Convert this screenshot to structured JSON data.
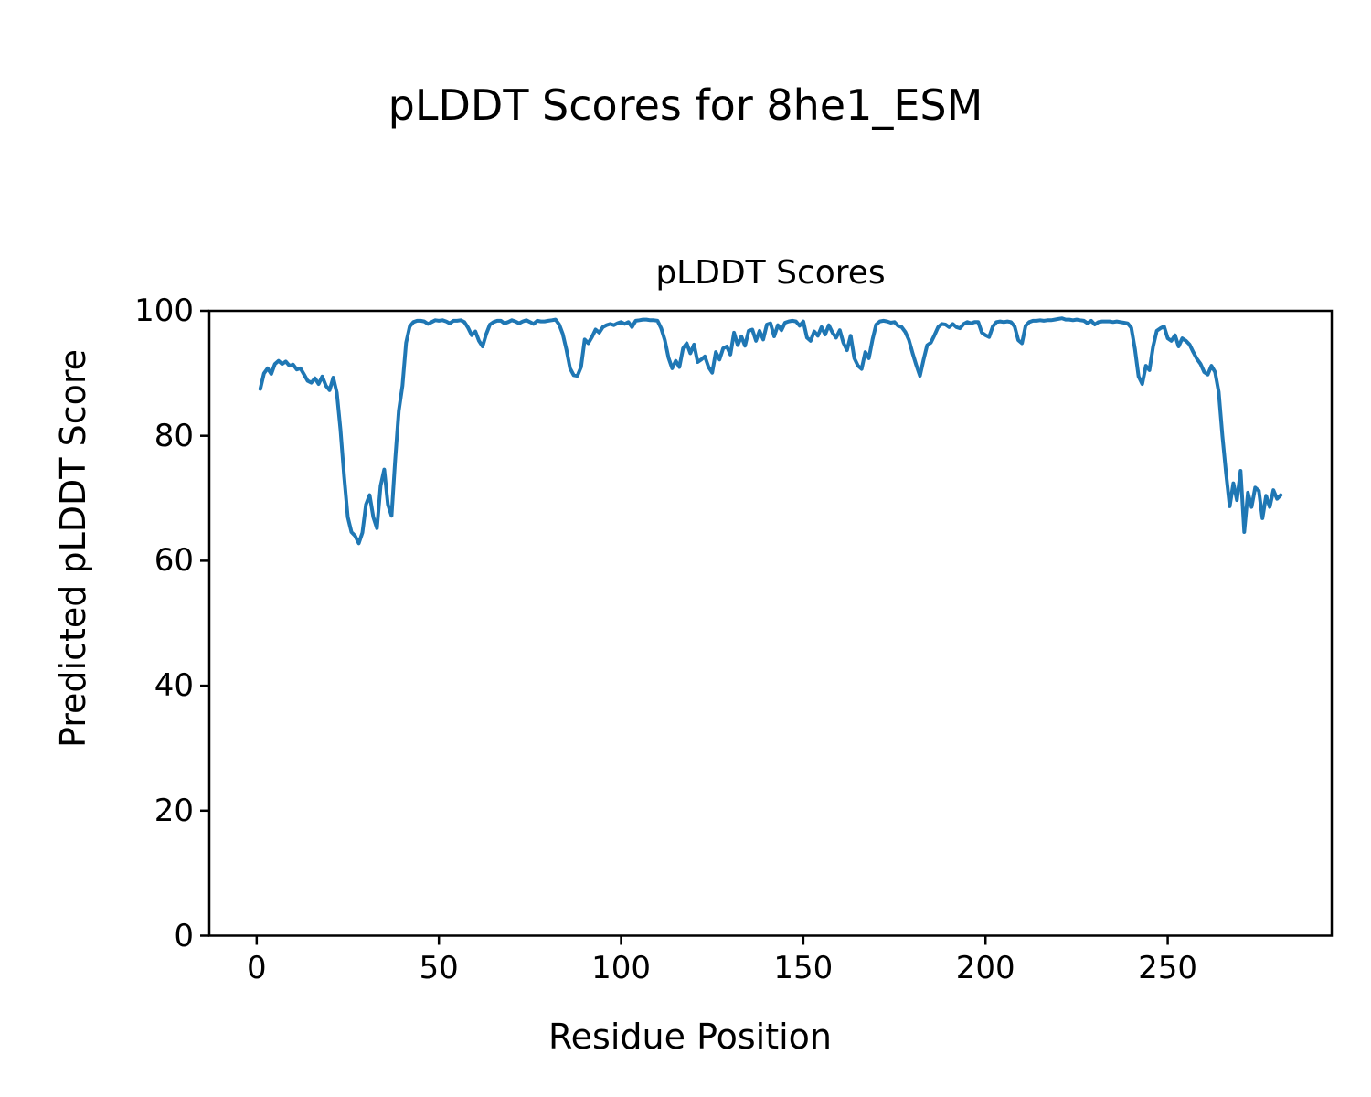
{
  "chart_data": {
    "type": "line",
    "suptitle": "pLDDT Scores for 8he1_ESM",
    "title": "pLDDT Scores",
    "xlabel": "Residue Position",
    "ylabel": "Predicted pLDDT Score",
    "x_start": 1,
    "x_step": 1,
    "xlim": [
      -13,
      295
    ],
    "ylim": [
      0,
      100
    ],
    "xticks": [
      0,
      50,
      100,
      150,
      200,
      250
    ],
    "yticks": [
      0,
      20,
      40,
      60,
      80,
      100
    ],
    "grid": false,
    "line_color": "#1f77b4",
    "line_width": 4,
    "values": [
      87.5,
      90.0,
      90.8,
      89.9,
      91.5,
      92.0,
      91.5,
      91.9,
      91.2,
      91.4,
      90.6,
      90.8,
      89.8,
      88.8,
      88.5,
      89.2,
      88.3,
      89.5,
      88.0,
      87.3,
      89.3,
      86.9,
      81.0,
      73.5,
      67.0,
      64.6,
      64.0,
      62.8,
      64.5,
      69.0,
      70.5,
      67.0,
      65.2,
      72.0,
      74.6,
      69.0,
      67.2,
      76.0,
      84.0,
      88.0,
      94.9,
      97.5,
      98.2,
      98.4,
      98.4,
      98.3,
      97.9,
      98.2,
      98.5,
      98.4,
      98.5,
      98.3,
      98.0,
      98.4,
      98.4,
      98.5,
      98.2,
      97.3,
      96.1,
      96.7,
      95.2,
      94.3,
      96.3,
      97.8,
      98.2,
      98.4,
      98.4,
      98.0,
      98.2,
      98.5,
      98.3,
      98.0,
      98.3,
      98.5,
      98.2,
      97.9,
      98.4,
      98.3,
      98.3,
      98.4,
      98.5,
      98.6,
      97.8,
      96.3,
      93.8,
      90.8,
      89.7,
      89.6,
      91.0,
      95.4,
      94.8,
      95.8,
      97.0,
      96.5,
      97.4,
      97.7,
      97.9,
      97.7,
      98.0,
      98.2,
      97.9,
      98.2,
      97.4,
      98.4,
      98.5,
      98.6,
      98.6,
      98.5,
      98.5,
      98.4,
      97.2,
      95.3,
      92.5,
      90.8,
      92.0,
      91.0,
      94.0,
      94.8,
      93.2,
      94.6,
      91.8,
      92.2,
      92.7,
      91.0,
      90.1,
      93.4,
      92.2,
      94.0,
      94.3,
      93.0,
      96.5,
      94.5,
      95.9,
      94.4,
      96.8,
      97.0,
      95.2,
      96.8,
      95.4,
      97.8,
      98.0,
      95.9,
      97.7,
      96.9,
      98.1,
      98.3,
      98.4,
      98.3,
      97.6,
      98.3,
      95.7,
      95.2,
      96.7,
      96.0,
      97.4,
      96.2,
      97.7,
      96.5,
      95.7,
      96.9,
      94.9,
      93.7,
      96.0,
      92.4,
      91.2,
      90.7,
      93.4,
      92.4,
      95.4,
      97.8,
      98.3,
      98.4,
      98.3,
      98.1,
      98.2,
      97.6,
      97.4,
      96.6,
      95.3,
      93.2,
      91.3,
      89.6,
      92.2,
      94.5,
      94.9,
      96.1,
      97.4,
      97.9,
      97.8,
      97.4,
      97.9,
      97.4,
      97.2,
      97.9,
      98.2,
      98.0,
      98.2,
      98.2,
      96.5,
      96.1,
      95.8,
      97.5,
      98.2,
      98.3,
      98.2,
      98.3,
      98.2,
      97.5,
      95.3,
      94.8,
      97.6,
      98.2,
      98.4,
      98.4,
      98.5,
      98.4,
      98.5,
      98.5,
      98.6,
      98.7,
      98.8,
      98.6,
      98.6,
      98.5,
      98.6,
      98.5,
      98.4,
      98.0,
      98.4,
      97.8,
      98.2,
      98.3,
      98.3,
      98.3,
      98.2,
      98.3,
      98.2,
      98.1,
      98.0,
      97.3,
      93.9,
      89.5,
      88.3,
      91.2,
      90.5,
      94.3,
      96.8,
      97.2,
      97.5,
      95.6,
      95.2,
      96.1,
      94.3,
      95.6,
      95.2,
      94.6,
      93.4,
      92.3,
      91.5,
      90.2,
      89.8,
      91.2,
      90.2,
      87.0,
      80.0,
      74.0,
      68.7,
      72.4,
      69.7,
      74.4,
      64.6,
      70.9,
      68.6,
      71.7,
      71.2,
      66.8,
      70.4,
      68.6,
      71.3,
      69.9,
      70.5
    ]
  }
}
